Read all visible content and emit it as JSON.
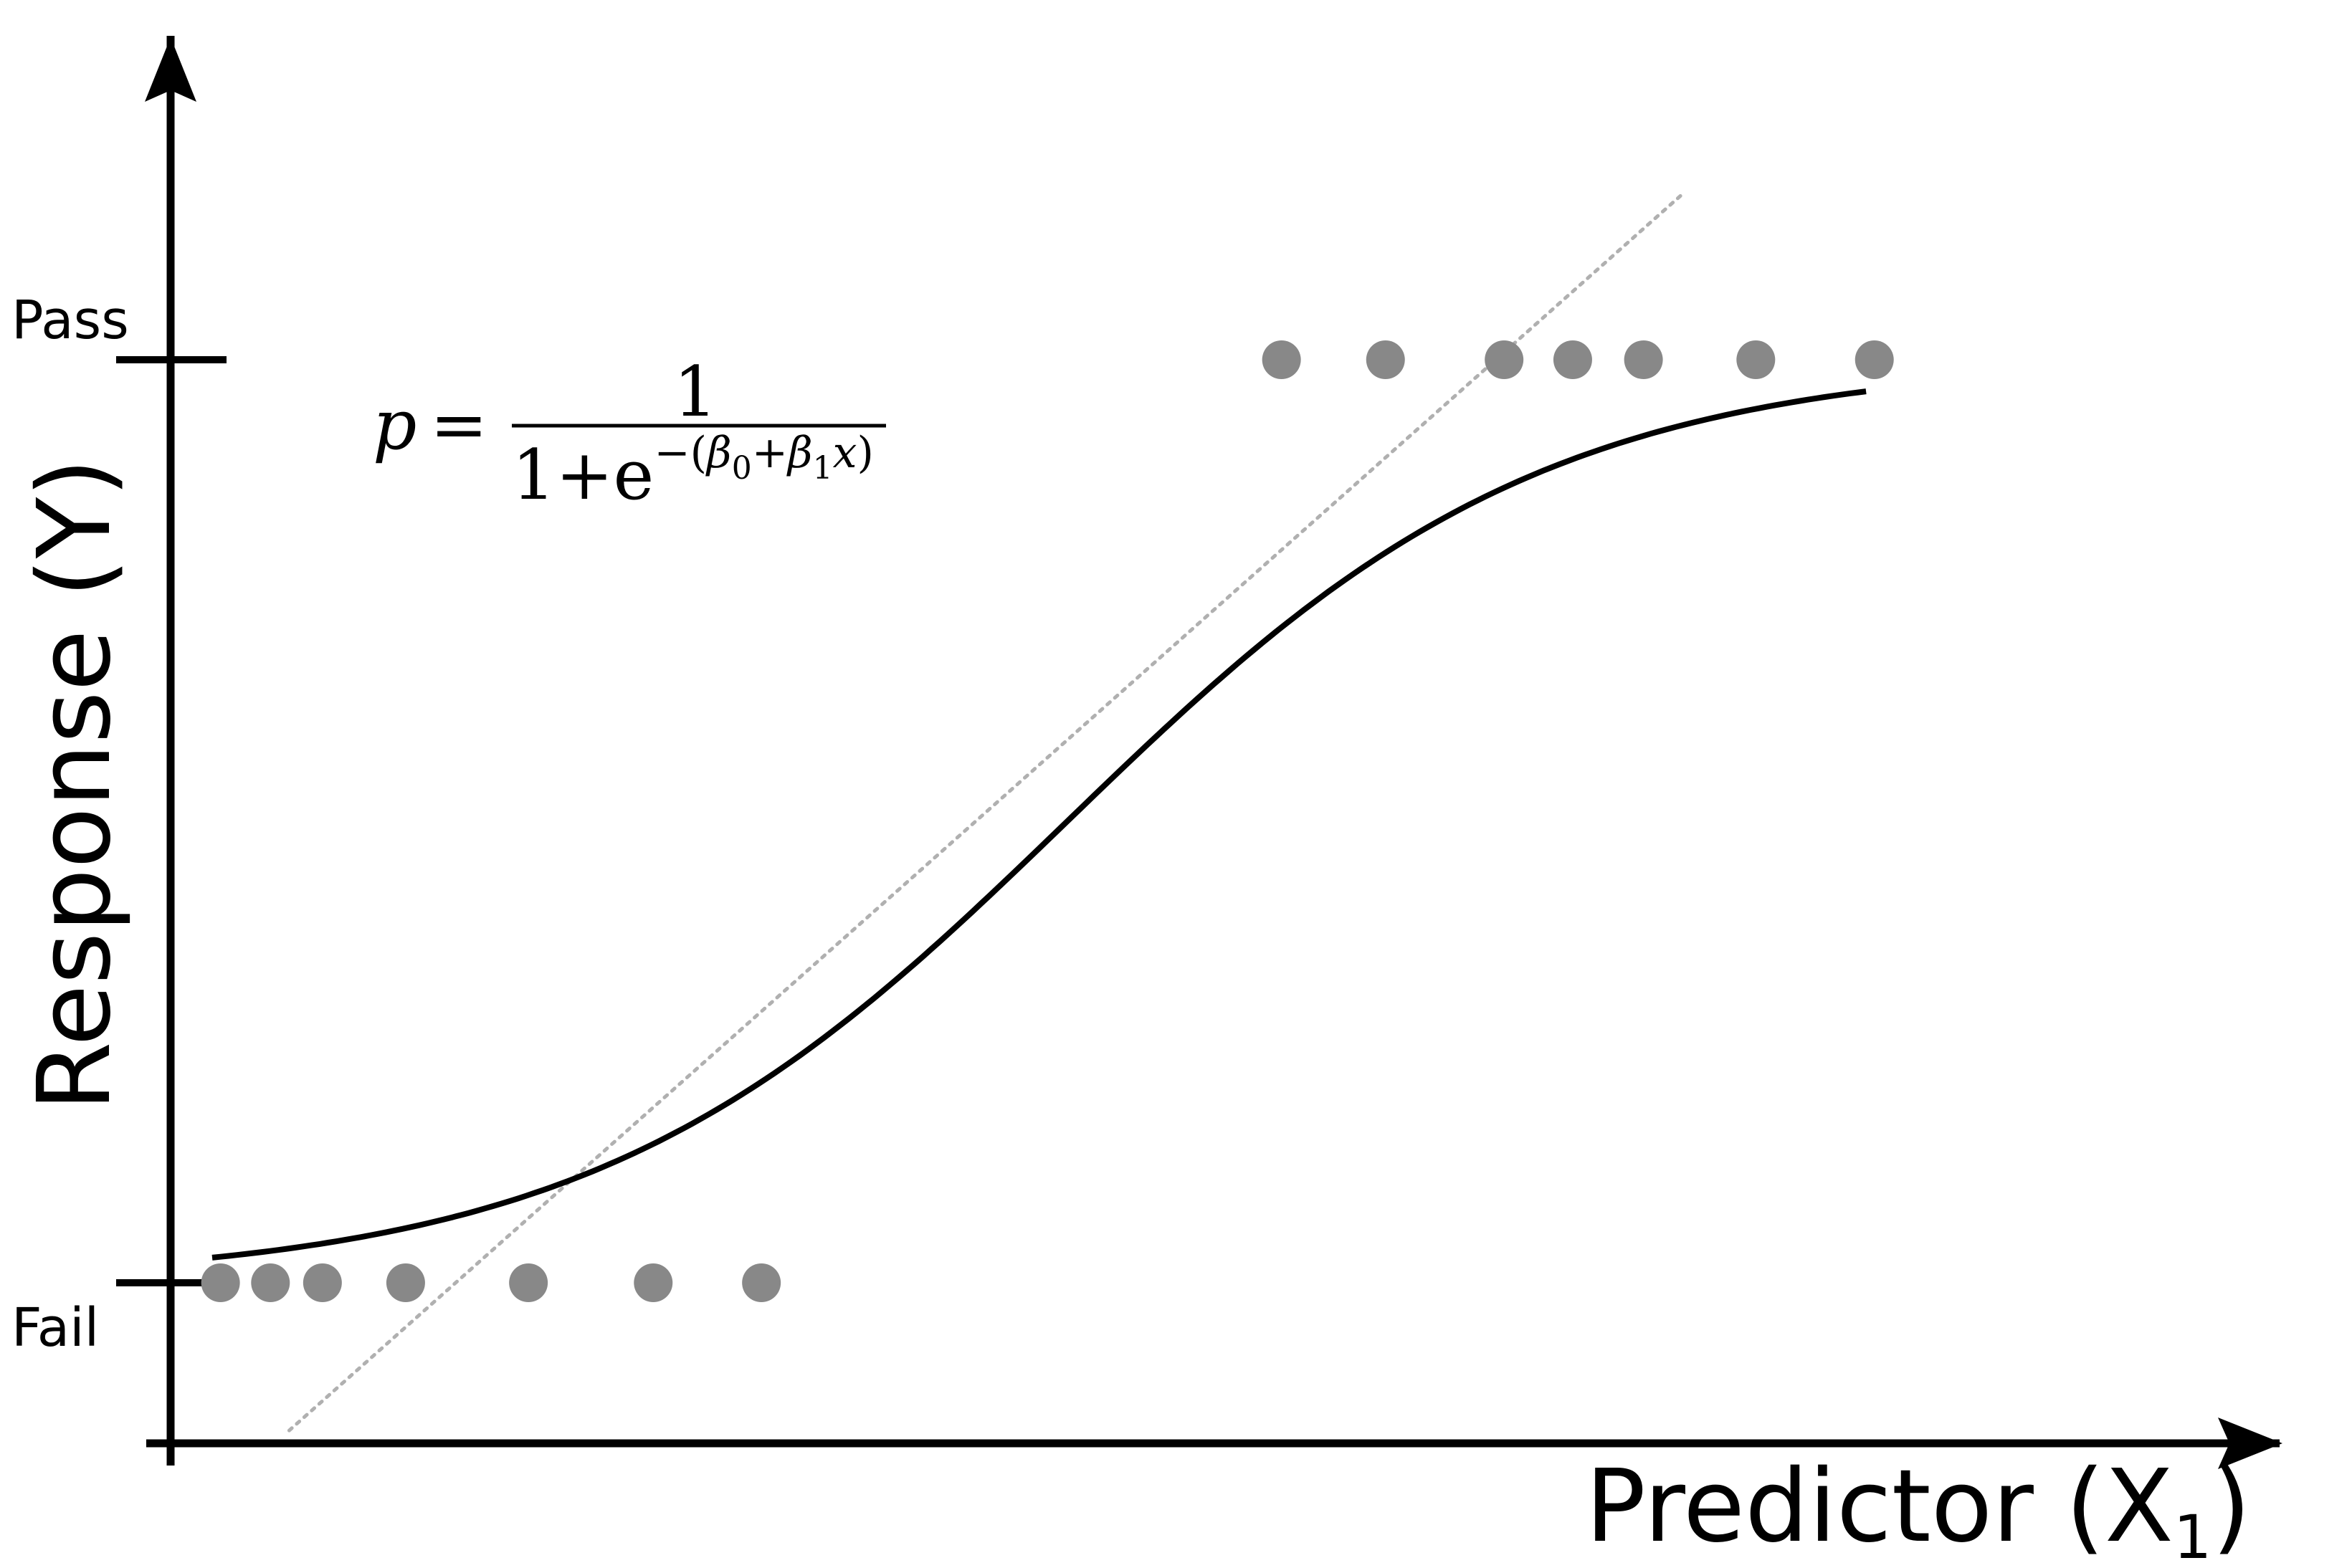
{
  "chart_data": {
    "type": "scatter",
    "title": "",
    "xlabel": "Predictor (X",
    "xlabel_subscript": "1",
    "xlabel_close": ")",
    "ylabel": "Response (Y)",
    "y_ticks": [
      {
        "label": "Fail",
        "value": 0
      },
      {
        "label": "Pass",
        "value": 1
      }
    ],
    "xlim": [
      0,
      10
    ],
    "ylim": [
      -0.19,
      1.33
    ],
    "grid": false,
    "series": [
      {
        "type": "scatter",
        "x": [
          0.24,
          0.48,
          0.73,
          1.13,
          1.72,
          2.32,
          2.84,
          5.34,
          5.84,
          6.41,
          6.74,
          7.08,
          7.62,
          8.19
        ],
        "y": [
          0,
          0,
          0,
          0,
          0,
          0,
          0,
          1,
          1,
          1,
          1,
          1,
          1,
          1
        ],
        "color": "#888888"
      },
      {
        "type": "line",
        "kind": "logistic",
        "beta0": -3.75,
        "beta1": 0.87,
        "x_range": [
          0.2,
          8.15
        ],
        "color": "#000000"
      },
      {
        "type": "line",
        "kind": "linear",
        "style": "dotted",
        "x": [
          0.57,
          7.27
        ],
        "y": [
          -0.16,
          1.18
        ],
        "color": "#aaaaaa"
      }
    ],
    "annotation": {
      "lhs": "p",
      "equals": "=",
      "numerator": "1",
      "denominator_base": "1+e",
      "exponent_sign": "−(",
      "beta_symbol": "β",
      "beta0_sub": "0",
      "plus": "+",
      "beta1_sub": "1",
      "exponent_var": "x",
      "exponent_close": ")"
    }
  }
}
